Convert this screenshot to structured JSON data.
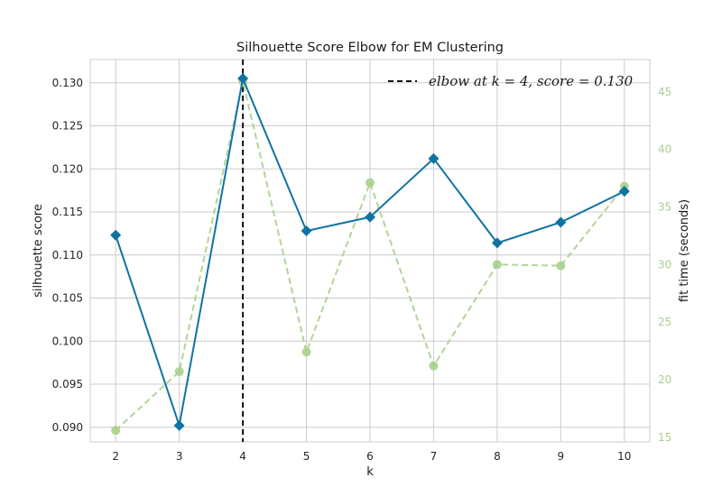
{
  "chart_data": {
    "type": "line",
    "title": "Silhouette Score Elbow for EM Clustering",
    "xlabel": "k",
    "ylabel": "silhouette score",
    "y2label": "fit time (seconds)",
    "x": [
      2,
      3,
      4,
      5,
      6,
      7,
      8,
      9,
      10
    ],
    "x_ticks": [
      "2",
      "3",
      "4",
      "5",
      "6",
      "7",
      "8",
      "9",
      "10"
    ],
    "xlim": [
      1.6,
      10.4
    ],
    "ylim": [
      0.0883,
      0.1327
    ],
    "y_ticks": [
      "0.090",
      "0.095",
      "0.100",
      "0.105",
      "0.110",
      "0.115",
      "0.120",
      "0.125",
      "0.130"
    ],
    "y2lim": [
      14.6,
      47.8
    ],
    "y2_ticks": [
      "15",
      "20",
      "25",
      "30",
      "35",
      "40",
      "45"
    ],
    "grid": true,
    "legend_position": "top-right",
    "series": [
      {
        "axis": "left",
        "color": "#0f73a1",
        "marker": "diamond",
        "line_style": "solid",
        "values": [
          0.1123,
          0.0902,
          0.1305,
          0.1128,
          0.1144,
          0.1212,
          0.1114,
          0.1138,
          0.1174
        ]
      },
      {
        "axis": "right",
        "color": "#a8d08d",
        "marker": "circle",
        "line_style": "dashed",
        "values": [
          15.6,
          20.7,
          45.9,
          22.4,
          37.1,
          21.2,
          30.0,
          29.9,
          36.8
        ]
      }
    ],
    "elbow": {
      "x": 4,
      "color": "#111111",
      "legend": "elbow at k = 4, score = 0.130"
    }
  }
}
